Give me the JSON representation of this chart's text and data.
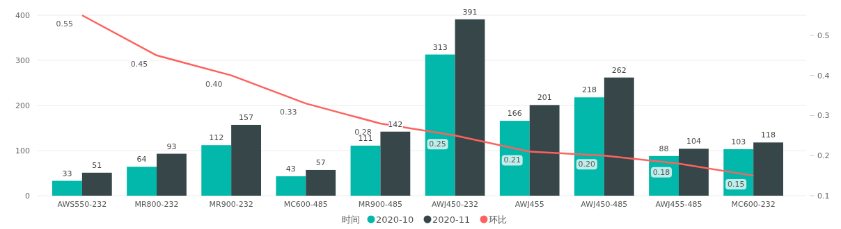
{
  "chart_data": {
    "type": "bar",
    "categories": [
      "AWS550-232",
      "MR800-232",
      "MR900-232",
      "MC600-485",
      "MR900-485",
      "AWJ450-232",
      "AWJ455",
      "AWJ450-485",
      "AWJ455-485",
      "MC600-232"
    ],
    "series": [
      {
        "name": "2020-10",
        "color": "#01b8aa",
        "values": [
          33,
          64,
          112,
          43,
          111,
          313,
          166,
          218,
          88,
          103
        ]
      },
      {
        "name": "2020-11",
        "color": "#374649",
        "values": [
          51,
          93,
          157,
          57,
          142,
          391,
          201,
          262,
          104,
          118
        ]
      },
      {
        "name": "环比",
        "type": "line",
        "axis": "y2",
        "color": "#fd625e",
        "values": [
          0.55,
          0.45,
          0.4,
          0.33,
          0.28,
          0.25,
          0.21,
          0.2,
          0.18,
          0.15
        ],
        "value_labels": [
          "0.55",
          "0.45",
          "0.40",
          "0.33",
          "0.28",
          "0.25",
          "0.21",
          "0.20",
          "0.18",
          "0.15"
        ]
      }
    ],
    "legend_title": "时间",
    "ylim": [
      0,
      400
    ],
    "yticks": [
      0,
      100,
      200,
      300,
      400
    ],
    "y2lim": [
      0.1,
      0.55
    ],
    "y2ticks": [
      {
        "value": 0.1,
        "label": "0.1"
      },
      {
        "value": 0.2,
        "label": "0.2"
      },
      {
        "value": 0.3,
        "label": "0.3"
      },
      {
        "value": 0.4,
        "label": "0.4"
      },
      {
        "value": 0.5,
        "label": "0.5"
      }
    ],
    "data_labels": true,
    "grid": "y",
    "legend": "bottom",
    "marker": "none"
  }
}
